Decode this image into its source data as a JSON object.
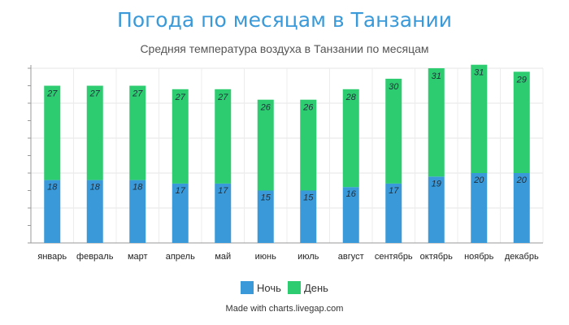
{
  "chart_data": {
    "type": "bar",
    "stacked": true,
    "title": "Погода по месяцам в Танзании",
    "subtitle": "Средняя температура воздуха в Танзании по месяцам",
    "categories": [
      "январь",
      "февраль",
      "март",
      "апрель",
      "май",
      "июнь",
      "июль",
      "август",
      "сентябрь",
      "октябрь",
      "ноябрь",
      "декабрь"
    ],
    "series": [
      {
        "name": "Ночь",
        "color": "#3a9ad9",
        "values": [
          18,
          18,
          18,
          17,
          17,
          15,
          15,
          16,
          17,
          19,
          20,
          20
        ]
      },
      {
        "name": "День",
        "color": "#2ecc71",
        "values": [
          27,
          27,
          27,
          27,
          27,
          26,
          26,
          28,
          30,
          31,
          31,
          29
        ]
      }
    ],
    "ylim": [
      0,
      50
    ],
    "grid": true,
    "legend_position": "bottom-center"
  },
  "credit": "Made with charts.livegap.com"
}
